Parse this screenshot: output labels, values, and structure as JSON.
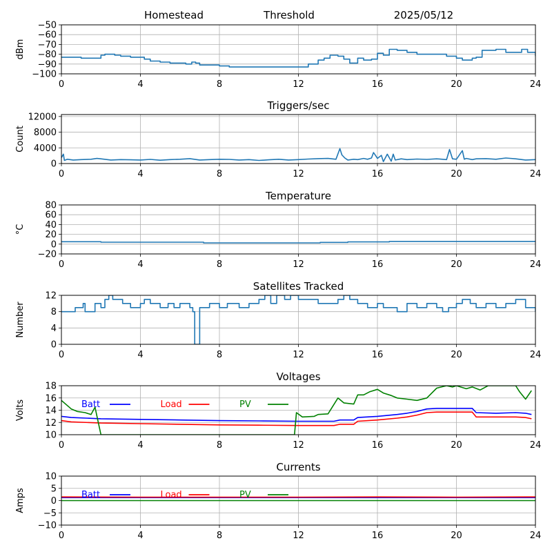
{
  "header": {
    "site": "Homestead",
    "label": "Threshold",
    "date": "2025/05/12"
  },
  "chart_data": [
    {
      "type": "line",
      "id": "threshold",
      "title": "",
      "ylabel": "dBm",
      "xlim": [
        0,
        24
      ],
      "xticks": [
        0,
        4,
        8,
        12,
        16,
        20,
        24
      ],
      "ylim": [
        -100,
        -50
      ],
      "yticks": [
        -100,
        -90,
        -80,
        -70,
        -60,
        -50
      ],
      "ytick_labels": [
        "−100",
        "−90",
        "−80",
        "−70",
        "−60",
        "−50"
      ],
      "grid": true,
      "series": [
        {
          "color": "#1f77b4",
          "step": true,
          "x": [
            0,
            1,
            2,
            2.2,
            2.7,
            3,
            3.5,
            4,
            4.2,
            4.5,
            5,
            5.5,
            6,
            6.1,
            6.3,
            6.6,
            6.8,
            7,
            7.5,
            8,
            8.5,
            10,
            11,
            12,
            12.5,
            13,
            13.3,
            13.6,
            14,
            14.3,
            14.6,
            15,
            15.3,
            15.7,
            16,
            16.3,
            16.6,
            17,
            17.5,
            18,
            18.5,
            19,
            19.5,
            20,
            20.3,
            20.8,
            21,
            21.3,
            22,
            22.5,
            23,
            23.3,
            23.6,
            24
          ],
          "y": [
            -83,
            -84,
            -81,
            -80,
            -81,
            -82,
            -83,
            -83,
            -85,
            -87,
            -88,
            -89,
            -89,
            -89,
            -90,
            -88,
            -89,
            -91,
            -91,
            -92,
            -93,
            -93,
            -93,
            -93,
            -90,
            -86,
            -84,
            -81,
            -82,
            -85,
            -89,
            -84,
            -86,
            -85,
            -79,
            -81,
            -75,
            -76,
            -78,
            -80,
            -80,
            -80,
            -82,
            -84,
            -86,
            -84,
            -83,
            -76,
            -75,
            -78,
            -78,
            -75,
            -78,
            -82
          ]
        }
      ]
    },
    {
      "type": "line",
      "id": "triggers",
      "title": "Triggers/sec",
      "ylabel": "Count",
      "xlim": [
        0,
        24
      ],
      "xticks": [
        0,
        4,
        8,
        12,
        16,
        20,
        24
      ],
      "ylim": [
        0,
        12500
      ],
      "yticks": [
        0,
        4000,
        8000,
        12000
      ],
      "ytick_labels": [
        "0",
        "4000",
        "8000",
        "12000"
      ],
      "grid": true,
      "series": [
        {
          "color": "#1f77b4",
          "step": false,
          "x": [
            0,
            0.1,
            0.15,
            0.3,
            0.6,
            1,
            1.5,
            1.8,
            2,
            2.5,
            3,
            3.5,
            4,
            4.5,
            5,
            5.5,
            6,
            6.5,
            7,
            7.5,
            8,
            8.5,
            9,
            9.5,
            10,
            10.5,
            11,
            11.5,
            12,
            12.5,
            13,
            13.5,
            13.9,
            14.1,
            14.2,
            14.35,
            14.5,
            14.8,
            15,
            15.3,
            15.5,
            15.7,
            15.8,
            15.9,
            16,
            16.2,
            16.3,
            16.5,
            16.7,
            16.8,
            16.9,
            17.1,
            17.2,
            17.5,
            18,
            18.5,
            19,
            19.5,
            19.65,
            19.8,
            20,
            20.3,
            20.4,
            20.5,
            20.8,
            21,
            21.5,
            22,
            22.5,
            23,
            23.5,
            24
          ],
          "y": [
            1500,
            2400,
            800,
            1100,
            900,
            1000,
            1100,
            1300,
            1200,
            900,
            1000,
            950,
            900,
            1050,
            850,
            1000,
            1100,
            1250,
            900,
            1000,
            1100,
            1050,
            900,
            1000,
            800,
            950,
            1100,
            900,
            1000,
            1150,
            1250,
            1300,
            1100,
            3800,
            2200,
            1400,
            900,
            1100,
            1000,
            1300,
            1100,
            1400,
            2800,
            2100,
            1300,
            2100,
            500,
            2400,
            600,
            2400,
            900,
            1100,
            1200,
            1000,
            1150,
            1050,
            1200,
            1000,
            3600,
            1200,
            1100,
            3300,
            1100,
            1300,
            1000,
            1200,
            1250,
            1100,
            1400,
            1200,
            900,
            1000
          ]
        }
      ]
    },
    {
      "type": "line",
      "id": "temperature",
      "title": "Temperature",
      "ylabel": "°C",
      "xlim": [
        0,
        24
      ],
      "xticks": [
        0,
        4,
        8,
        12,
        16,
        20,
        24
      ],
      "ylim": [
        -20,
        80
      ],
      "yticks": [
        -20,
        0,
        20,
        40,
        60,
        80
      ],
      "ytick_labels": [
        "−20",
        "0",
        "20",
        "40",
        "60",
        "80"
      ],
      "grid": true,
      "series": [
        {
          "color": "#1f77b4",
          "step": true,
          "x": [
            0,
            2,
            7.2,
            13.1,
            14.5,
            16.6,
            24
          ],
          "y": [
            5,
            4,
            2.5,
            3.5,
            4.5,
            5.5,
            5.5
          ]
        }
      ]
    },
    {
      "type": "line",
      "id": "satellites",
      "title": "Satellites Tracked",
      "ylabel": "Number",
      "xlim": [
        0,
        24
      ],
      "xticks": [
        0,
        4,
        8,
        12,
        16,
        20,
        24
      ],
      "ylim": [
        0,
        12
      ],
      "yticks": [
        0,
        4,
        8,
        12
      ],
      "ytick_labels": [
        "0",
        "4",
        "8",
        "12"
      ],
      "grid": true,
      "series": [
        {
          "color": "#1f77b4",
          "step": true,
          "x": [
            0,
            0.7,
            1.1,
            1.2,
            1.7,
            2,
            2.2,
            2.4,
            2.6,
            3.1,
            3.5,
            4,
            4.2,
            4.5,
            5,
            5.4,
            5.7,
            6,
            6.5,
            6.65,
            6.75,
            7,
            7.5,
            8,
            8.4,
            9,
            9.5,
            10,
            10.3,
            10.6,
            10.9,
            11.3,
            11.6,
            12,
            13,
            14,
            14.3,
            14.6,
            15,
            15.5,
            16,
            16.3,
            17,
            17.5,
            18,
            18.5,
            19,
            19.3,
            19.6,
            20,
            20.3,
            20.7,
            21,
            21.5,
            22,
            22.5,
            23,
            23.5,
            24
          ],
          "y": [
            8,
            9,
            10,
            8,
            10,
            9,
            11,
            12,
            11,
            10,
            9,
            10,
            11,
            10,
            9,
            10,
            9,
            10,
            9,
            8,
            0,
            9,
            10,
            9,
            10,
            9,
            10,
            11,
            12,
            10,
            12,
            11,
            12,
            11,
            10,
            11,
            12,
            11,
            10,
            9,
            10,
            9,
            8,
            10,
            9,
            10,
            9,
            8,
            9,
            10,
            11,
            10,
            9,
            10,
            9,
            10,
            11,
            9,
            8
          ]
        }
      ]
    },
    {
      "type": "line",
      "id": "voltages",
      "title": "Voltages",
      "ylabel": "Volts",
      "xlim": [
        0,
        24
      ],
      "xticks": [
        0,
        4,
        8,
        12,
        16,
        20,
        24
      ],
      "ylim": [
        10,
        18
      ],
      "yticks": [
        10,
        12,
        14,
        16,
        18
      ],
      "ytick_labels": [
        "10",
        "12",
        "14",
        "16",
        "18"
      ],
      "grid": true,
      "legend": "inside-top",
      "series": [
        {
          "name": "Batt",
          "color": "#0000ff",
          "step": false,
          "x": [
            0,
            0.5,
            2,
            4,
            6,
            8,
            10,
            12,
            13,
            13.8,
            14.1,
            14.8,
            15,
            16,
            17,
            17.5,
            18,
            18.5,
            19,
            20,
            20.8,
            21,
            22,
            23,
            23.5,
            23.8
          ],
          "y": [
            13,
            12.8,
            12.6,
            12.5,
            12.4,
            12.3,
            12.25,
            12.2,
            12.2,
            12.2,
            12.4,
            12.4,
            12.8,
            13,
            13.3,
            13.5,
            13.8,
            14.2,
            14.3,
            14.3,
            14.3,
            13.6,
            13.5,
            13.6,
            13.5,
            13.3
          ]
        },
        {
          "name": "Load",
          "color": "#ff0000",
          "step": false,
          "x": [
            0,
            0.5,
            2,
            4,
            6,
            8,
            10,
            12,
            13,
            13.8,
            14.1,
            14.8,
            15,
            16,
            17,
            17.5,
            18,
            18.5,
            19,
            20,
            20.8,
            21,
            22,
            23,
            23.5,
            23.8
          ],
          "y": [
            12.3,
            12.1,
            11.9,
            11.8,
            11.7,
            11.6,
            11.55,
            11.5,
            11.5,
            11.5,
            11.7,
            11.7,
            12.2,
            12.4,
            12.7,
            12.9,
            13.2,
            13.6,
            13.7,
            13.7,
            13.7,
            12.9,
            12.9,
            12.9,
            12.8,
            12.6
          ]
        },
        {
          "name": "PV",
          "color": "#008000",
          "step": false,
          "x": [
            0,
            0.5,
            0.8,
            1.2,
            1.5,
            1.7,
            1.9,
            2,
            11.8,
            11.9,
            12.2,
            12.8,
            13,
            13.5,
            14,
            14.3,
            14.8,
            15,
            15.3,
            15.6,
            16,
            16.3,
            16.7,
            17,
            17.5,
            18,
            18.5,
            19,
            19.5,
            19.8,
            20,
            20.5,
            20.8,
            21.2,
            21.6,
            22,
            22.5,
            23,
            23.2,
            23.5,
            23.8
          ],
          "y": [
            15.6,
            14.2,
            13.8,
            13.6,
            13.3,
            14.5,
            11.5,
            10,
            10,
            13.6,
            12.9,
            13,
            13.3,
            13.4,
            16,
            15.2,
            15,
            16.5,
            16.5,
            17,
            17.4,
            16.8,
            16.4,
            16,
            15.8,
            15.6,
            16,
            17.6,
            18,
            17.8,
            18,
            17.5,
            17.8,
            17.3,
            18,
            18,
            18,
            18,
            17,
            15.8,
            17.2
          ]
        }
      ]
    },
    {
      "type": "line",
      "id": "currents",
      "title": "Currents",
      "ylabel": "Amps",
      "xlim": [
        0,
        24
      ],
      "xticks": [
        0,
        4,
        8,
        12,
        16,
        20,
        24
      ],
      "ylim": [
        -10,
        10
      ],
      "yticks": [
        -10,
        -5,
        0,
        5,
        10
      ],
      "ytick_labels": [
        "−10",
        "−5",
        "0",
        "5",
        "10"
      ],
      "grid": true,
      "legend": "inside-top",
      "series": [
        {
          "name": "Batt",
          "color": "#0000ff",
          "step": false,
          "x": [
            0,
            24
          ],
          "y": [
            1.2,
            1.2
          ]
        },
        {
          "name": "Load",
          "color": "#ff0000",
          "step": false,
          "x": [
            0,
            4,
            8,
            12,
            16,
            20,
            24
          ],
          "y": [
            1.5,
            1.4,
            1.4,
            1.4,
            1.5,
            1.4,
            1.5
          ]
        },
        {
          "name": "PV",
          "color": "#008000",
          "step": false,
          "x": [
            0,
            24
          ],
          "y": [
            0,
            0
          ]
        }
      ]
    }
  ]
}
